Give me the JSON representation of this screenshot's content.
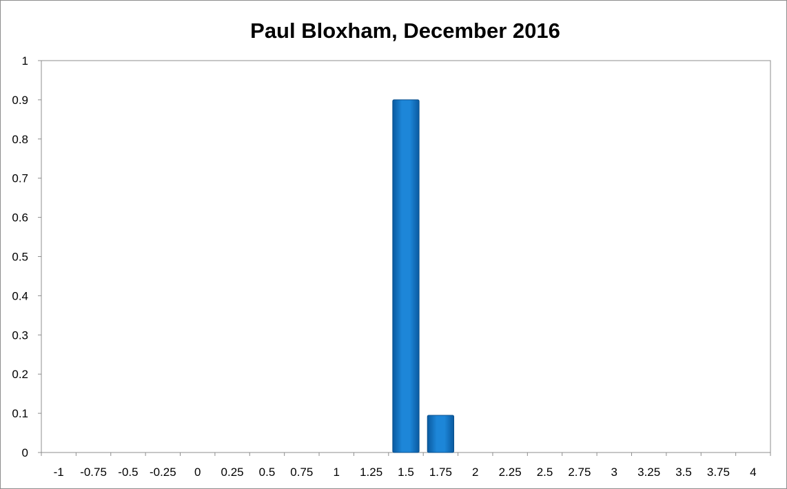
{
  "chart_data": {
    "type": "bar",
    "title": "Paul Bloxham, December 2016",
    "xlabel": "",
    "ylabel": "",
    "categories": [
      "-1",
      "-0.75",
      "-0.5",
      "-0.25",
      "0",
      "0.25",
      "0.5",
      "0.75",
      "1",
      "1.25",
      "1.5",
      "1.75",
      "2",
      "2.25",
      "2.5",
      "2.75",
      "3",
      "3.25",
      "3.5",
      "3.75",
      "4"
    ],
    "values": [
      0,
      0,
      0,
      0,
      0,
      0,
      0,
      0,
      0,
      0,
      0.9,
      0.095,
      0,
      0,
      0,
      0,
      0,
      0,
      0,
      0,
      0
    ],
    "ylim": [
      0,
      1
    ],
    "yticks": [
      "0",
      "0.1",
      "0.2",
      "0.3",
      "0.4",
      "0.5",
      "0.6",
      "0.7",
      "0.8",
      "0.9",
      "1"
    ],
    "grid": false,
    "legend": "none",
    "bar_color": "#0a6ebd"
  }
}
